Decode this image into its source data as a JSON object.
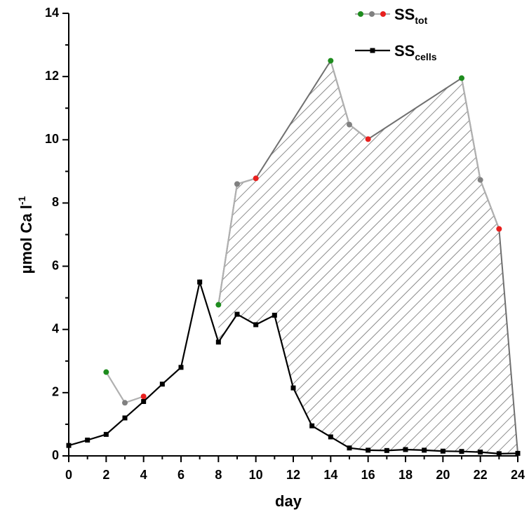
{
  "chart_data": {
    "type": "line",
    "xlabel": "day",
    "ylabel": "µmol Ca l",
    "ylabel_sup": "-1",
    "x": [
      0,
      1,
      2,
      3,
      4,
      5,
      6,
      7,
      8,
      9,
      10,
      11,
      12,
      13,
      14,
      15,
      16,
      17,
      18,
      19,
      20,
      21,
      22,
      23,
      24
    ],
    "series": [
      {
        "name": "SS",
        "name_sub": "tot",
        "color": "#b0b0b0",
        "marker": "circle",
        "marker_colors": [
          "#1e8c1e",
          "#808080",
          "#e8201e"
        ],
        "values": [
          null,
          null,
          2.65,
          1.68,
          1.88,
          null,
          null,
          null,
          4.78,
          8.6,
          8.78,
          null,
          null,
          null,
          12.5,
          10.48,
          10.02,
          null,
          null,
          null,
          null,
          11.95,
          8.73,
          7.18,
          null
        ]
      },
      {
        "name": "SS",
        "name_sub": "cells",
        "color": "#000000",
        "marker": "square",
        "values": [
          0.33,
          0.5,
          0.68,
          1.2,
          1.72,
          2.27,
          2.8,
          5.5,
          3.6,
          4.48,
          4.15,
          4.45,
          2.15,
          0.95,
          0.6,
          0.25,
          0.18,
          0.17,
          0.2,
          0.18,
          0.15,
          0.14,
          0.12,
          0.07,
          0.08
        ]
      }
    ],
    "xlim": [
      0,
      24
    ],
    "xticks": [
      0,
      2,
      4,
      6,
      8,
      10,
      12,
      14,
      16,
      18,
      20,
      22,
      24
    ],
    "ylim": [
      0,
      14
    ],
    "yticks": [
      0,
      2,
      4,
      6,
      8,
      10,
      12,
      14
    ],
    "hatch_color": "#707070",
    "legend": "upper right"
  }
}
